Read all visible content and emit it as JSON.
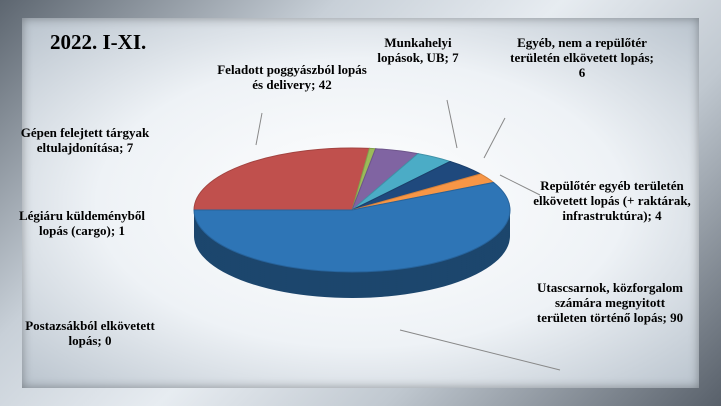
{
  "chart_data": {
    "type": "pie",
    "title": "2022. I-XI.",
    "categories": [
      "Feladott poggyászból lopás és delivery; 42",
      "Légiáru küldeményből lopás (cargo); 1",
      "Munkahelyi lopások, UB; 7",
      "Egyéb, nem a repülőtér területén elkövetett lopás; 6",
      "Gépen felejtett tárgyak eltulajdonítása; 7",
      "Repülőtér egyéb területén elkövetett lopás (+ raktárak, infrastruktúra); 4",
      "Postazsákból elkövetett lopás; 0",
      "Utascsarnok, közforgalom számára megnyitott területen történő lopás; 90"
    ],
    "values": [
      42,
      1,
      7,
      6,
      7,
      4,
      0,
      90
    ],
    "colors": [
      "#c0504d",
      "#9bbb59",
      "#8064a2",
      "#4bacc6",
      "#1f497d",
      "#f79646",
      "#7f7f7f",
      "#2e75b6"
    ]
  }
}
